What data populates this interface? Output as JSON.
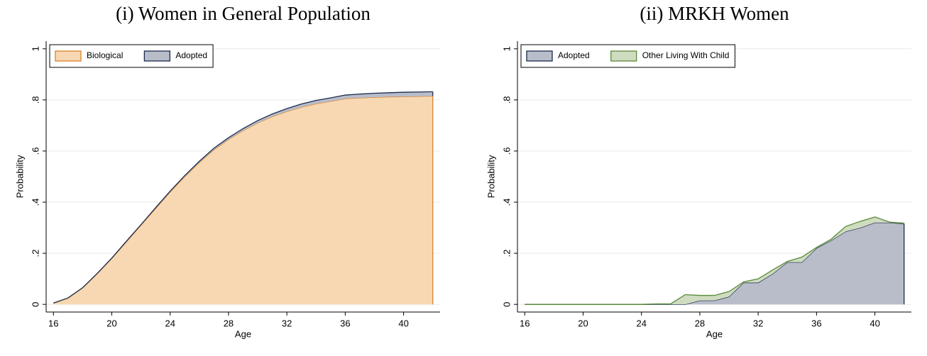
{
  "chart_data": [
    {
      "type": "area",
      "stacked": true,
      "title": "(i) Women in General Population",
      "xlabel": "Age",
      "ylabel": "Probability",
      "x": [
        16,
        17,
        18,
        19,
        20,
        21,
        22,
        23,
        24,
        25,
        26,
        27,
        28,
        29,
        30,
        31,
        32,
        33,
        34,
        35,
        36,
        37,
        38,
        39,
        40,
        41,
        42
      ],
      "series": [
        {
          "name": "Biological",
          "color": "#f7d8b2",
          "edge": "#d9822b",
          "values": [
            0.005,
            0.025,
            0.065,
            0.12,
            0.18,
            0.245,
            0.31,
            0.375,
            0.44,
            0.5,
            0.555,
            0.605,
            0.645,
            0.68,
            0.71,
            0.735,
            0.755,
            0.772,
            0.785,
            0.795,
            0.805,
            0.808,
            0.81,
            0.812,
            0.813,
            0.814,
            0.815
          ]
        },
        {
          "name": "Adopted",
          "color": "#b9bdca",
          "edge": "#1a2b4c",
          "values": [
            0,
            0,
            0,
            0.001,
            0.001,
            0.002,
            0.002,
            0.003,
            0.003,
            0.004,
            0.005,
            0.006,
            0.007,
            0.008,
            0.009,
            0.01,
            0.011,
            0.012,
            0.013,
            0.013,
            0.014,
            0.015,
            0.016,
            0.016,
            0.017,
            0.017,
            0.017
          ]
        }
      ],
      "xlim": [
        15.5,
        42.5
      ],
      "ylim": [
        -0.03,
        1.03
      ],
      "xticks": [
        16,
        20,
        24,
        28,
        32,
        36,
        40
      ],
      "yticks": [
        0,
        {
          "value": 0.2,
          "label": ".2"
        },
        {
          "value": 0.4,
          "label": ".4"
        },
        {
          "value": 0.6,
          "label": ".6"
        },
        {
          "value": 0.8,
          "label": ".8"
        },
        1
      ],
      "grid": true,
      "legend": "top-left"
    },
    {
      "type": "area",
      "stacked": true,
      "title": "(ii) MRKH Women",
      "xlabel": "Age",
      "ylabel": "Probability",
      "x": [
        16,
        17,
        18,
        19,
        20,
        21,
        22,
        23,
        24,
        25,
        26,
        27,
        28,
        29,
        30,
        31,
        32,
        33,
        34,
        35,
        36,
        37,
        38,
        39,
        40,
        41,
        42
      ],
      "series": [
        {
          "name": "Adopted",
          "color": "#b9bdca",
          "edge": "#1a2b4c",
          "values": [
            0,
            0,
            0,
            0,
            0,
            0,
            0,
            0,
            0,
            0,
            0,
            0,
            0.015,
            0.015,
            0.03,
            0.085,
            0.085,
            0.12,
            0.165,
            0.165,
            0.22,
            0.25,
            0.285,
            0.3,
            0.32,
            0.32,
            0.315
          ]
        },
        {
          "name": "Other Living With Child",
          "color": "#cfdcc0",
          "edge": "#5a8a3a",
          "values": [
            0,
            0,
            0,
            0,
            0,
            0,
            0,
            0,
            0,
            0.002,
            0.002,
            0.038,
            0.02,
            0.02,
            0.02,
            0.003,
            0.015,
            0.015,
            0.003,
            0.02,
            0.003,
            0.005,
            0.02,
            0.025,
            0.022,
            0.002,
            0.003
          ]
        }
      ],
      "xlim": [
        15.5,
        42.5
      ],
      "ylim": [
        -0.03,
        1.03
      ],
      "xticks": [
        16,
        20,
        24,
        28,
        32,
        36,
        40
      ],
      "yticks": [
        0,
        {
          "value": 0.2,
          "label": ".2"
        },
        {
          "value": 0.4,
          "label": ".4"
        },
        {
          "value": 0.6,
          "label": ".6"
        },
        {
          "value": 0.8,
          "label": ".8"
        },
        1
      ],
      "grid": true,
      "legend": "top-left"
    }
  ]
}
